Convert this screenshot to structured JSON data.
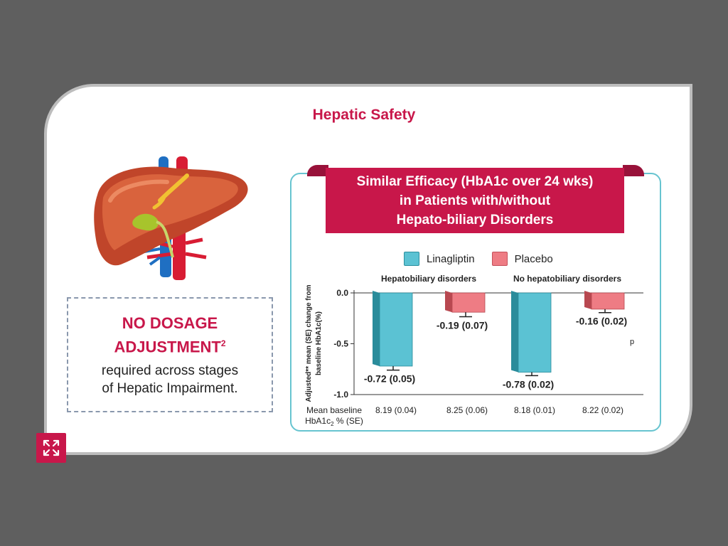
{
  "page": {
    "title": "Hepatic Safety"
  },
  "dosage": {
    "heading_line1": "NO DOSAGE",
    "heading_line2": "ADJUSTMENT",
    "heading_sup": "2",
    "body_line1": "required across stages",
    "body_line2": "of Hepatic Impairment."
  },
  "ribbon": {
    "line1": "Similar Efficacy (HbA1c over 24 wks)",
    "line2": "in Patients with/without",
    "line3": "Hepato-biliary Disorders"
  },
  "legend": {
    "linagliptin": "Linagliptin",
    "placebo": "Placebo"
  },
  "colors": {
    "accent": "#c8174a",
    "linagliptin": "#5bc2d3",
    "placebo": "#ee7c84",
    "frame": "#67c4d0"
  },
  "icons": {
    "expand": "expand-arrows-icon",
    "liver": "liver-illustration"
  },
  "chart_data": {
    "type": "bar",
    "groups": [
      "Hepatobiliary disorders",
      "No hepatobiliary disorders"
    ],
    "ylabel_line1": "Adjusted** mean (SE) change from",
    "ylabel_line2": "baseline HbA1c(%)",
    "ylim": [
      -1.0,
      0.0
    ],
    "yticks": [
      "0.0",
      "-0.5",
      "-1.0"
    ],
    "series": [
      {
        "name": "Linagliptin",
        "values": [
          -0.72,
          -0.78
        ],
        "labels": [
          "-0.72 (0.05)",
          "-0.78 (0.02)"
        ]
      },
      {
        "name": "Placebo",
        "values": [
          -0.19,
          -0.16
        ],
        "labels": [
          "-0.19 (0.07)",
          "-0.16 (0.02)"
        ]
      }
    ],
    "baseline_label_line1": "Mean baseline",
    "baseline_label_line2": "HbA1c",
    "baseline_label_sub": "2",
    "baseline_label_tail": " % (SE)",
    "baseline_values": [
      "8.19 (0.04)",
      "8.25 (0.06)",
      "8.18 (0.01)",
      "8.22 (0.02)"
    ],
    "note": "p"
  }
}
